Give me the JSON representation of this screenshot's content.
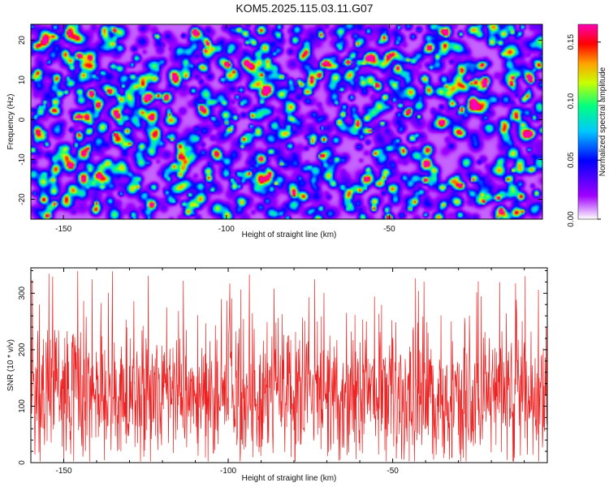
{
  "figure": {
    "title": "KOM5.2025.115.03.11.G07"
  },
  "chart_data": [
    {
      "type": "heatmap",
      "title": "KOM5.2025.115.03.11.G07",
      "xlabel": "Height of straight line (km)",
      "ylabel": "Frequency (Hz)",
      "xlim": [
        -160,
        -3
      ],
      "ylim": [
        -25,
        24
      ],
      "xticks": [
        -150,
        -100,
        -50
      ],
      "yticks": [
        -20,
        -10,
        0,
        10,
        20
      ],
      "colorbar": {
        "label": "Normalized spectral amplitude",
        "range": [
          0.0,
          0.165
        ],
        "ticks": [
          "0.00",
          "0.05",
          "0.10",
          "0.15"
        ],
        "colors": [
          "#ffffff",
          "#a000ff",
          "#0000ff",
          "#00c8ff",
          "#00ff80",
          "#c8ff00",
          "#ffa000",
          "#ff0000",
          "#ff00b4"
        ]
      },
      "peak": {
        "x": -39,
        "y": -15,
        "value": 0.16
      }
    },
    {
      "type": "line",
      "xlabel": "Height of straight line (km)",
      "ylabel": "SNR (10 * v/v)",
      "xlim": [
        -160,
        -3
      ],
      "ylim": [
        0,
        345
      ],
      "xticks": [
        -150,
        -100,
        -50
      ],
      "yticks": [
        0,
        100,
        200,
        300
      ],
      "series": [
        {
          "color": "#ee2222",
          "mean": 120,
          "max": 340,
          "min": 2
        }
      ]
    }
  ]
}
